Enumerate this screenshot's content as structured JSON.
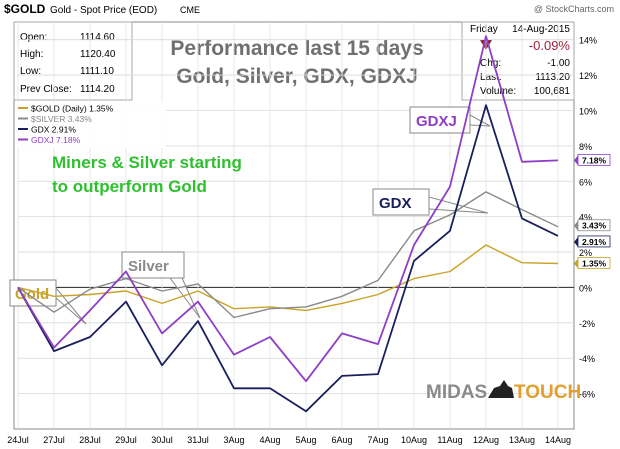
{
  "header": {
    "symbol": "$GOLD",
    "description": "Gold - Spot Price (EOD)",
    "exchange": "CME",
    "watermark": "@ StockCharts.com",
    "day": "Friday",
    "date": "14-Aug-2015",
    "change_pct": "-0.09%",
    "labels": {
      "open": "Open:",
      "high": "High:",
      "low": "Low:",
      "prev_close": "Prev Close:",
      "chg": "Chg:",
      "last": "Last:",
      "volume": "Volume:"
    },
    "values": {
      "open": "1114.60",
      "high": "1120.40",
      "low": "1111.10",
      "prev_close": "1114.20",
      "chg": "-1.00",
      "last": "1113.20",
      "volume": "100,681"
    }
  },
  "chart_data": {
    "type": "line",
    "title": "Performance last 15 days",
    "subtitle": "Gold, Silver, GDX, GDXJ",
    "x": [
      "24Jul",
      "27Jul",
      "28Jul",
      "29Jul",
      "30Jul",
      "31Jul",
      "3Aug",
      "4Aug",
      "5Aug",
      "6Aug",
      "7Aug",
      "10Aug",
      "11Aug",
      "12Aug",
      "13Aug",
      "14Aug"
    ],
    "ylim": [
      -8,
      15
    ],
    "yticks": [
      -6,
      -4,
      -2,
      0,
      2,
      4,
      6,
      8,
      10,
      12,
      14
    ],
    "grid": true,
    "legend_position": "top-left",
    "series": [
      {
        "name": "$GOLD (Daily) 1.35%",
        "color": "#c9a227",
        "end_label": "1.35%",
        "values": [
          0,
          -0.5,
          -0.4,
          -0.2,
          -0.9,
          -0.2,
          -1.2,
          -1.1,
          -1.3,
          -0.9,
          -0.4,
          0.5,
          0.9,
          2.4,
          1.4,
          1.35
        ]
      },
      {
        "name": "$SILVER 3.43%",
        "color": "#8a8a8a",
        "end_label": "3.43%",
        "values": [
          0,
          -1.4,
          -0.1,
          0.5,
          -0.2,
          0.2,
          -1.7,
          -1.2,
          -1.1,
          -0.5,
          0.4,
          3.2,
          4.1,
          5.4,
          4.4,
          3.43
        ]
      },
      {
        "name": "GDX 2.91%",
        "color": "#1a1f5e",
        "end_label": "2.91%",
        "values": [
          0,
          -3.6,
          -2.8,
          -0.8,
          -4.4,
          -1.9,
          -5.7,
          -5.7,
          -7.0,
          -5.0,
          -4.9,
          1.5,
          3.2,
          10.3,
          3.9,
          2.91
        ]
      },
      {
        "name": "GDXJ 7.18%",
        "color": "#8e3fc6",
        "end_label": "7.18%",
        "values": [
          0,
          -3.4,
          -1.3,
          0.9,
          -2.6,
          -0.8,
          -3.8,
          -2.8,
          -5.3,
          -2.6,
          -3.2,
          2.4,
          5.7,
          14.2,
          7.1,
          7.18
        ]
      }
    ],
    "annotations": {
      "headline": [
        "Miners & Silver starting",
        "to outperform Gold"
      ],
      "gold": "Gold",
      "silver": "Silver",
      "gdx": "GDX",
      "gdxj": "GDXJ"
    },
    "logo": {
      "left": "MIDAS",
      "right": "TOUCH"
    }
  }
}
